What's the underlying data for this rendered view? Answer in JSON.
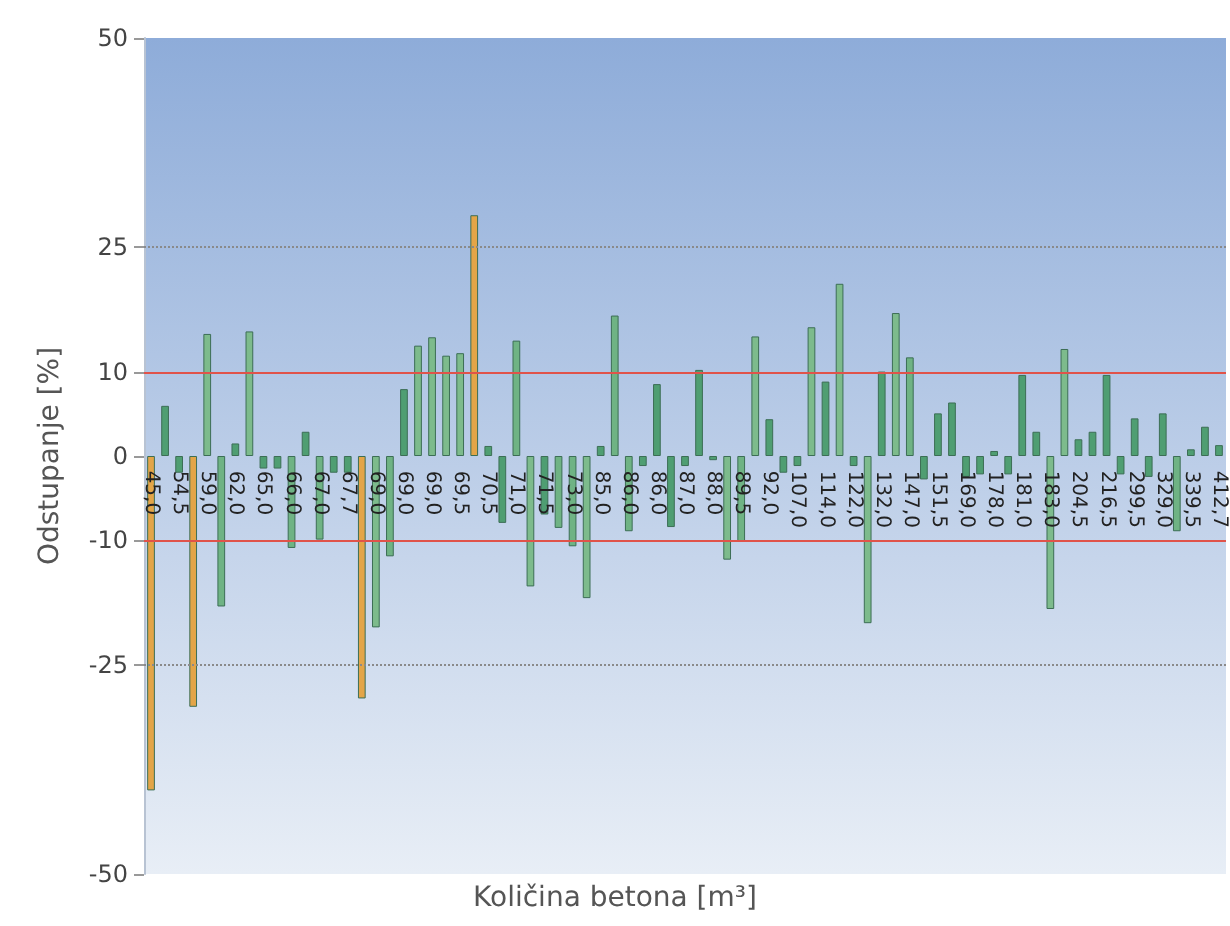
{
  "chart_data": {
    "type": "bar",
    "xlabel": "Količina betona [m³]",
    "ylabel": "Odstupanje [%]",
    "categories": [
      "45,0",
      null,
      "54,5",
      null,
      "59,0",
      null,
      "62,0",
      null,
      "65,0",
      null,
      "66,0",
      null,
      "67,0",
      null,
      "67,7",
      null,
      "69,0",
      null,
      "69,0",
      null,
      "69,0",
      null,
      "69,5",
      null,
      "70,5",
      null,
      "71,0",
      null,
      "71,5",
      null,
      "73,0",
      null,
      "85,0",
      null,
      "86,0",
      null,
      "86,0",
      null,
      "87,0",
      null,
      "88,0",
      null,
      "89,5",
      null,
      "92,0",
      null,
      "107,0",
      null,
      "114,0",
      null,
      "122,0",
      null,
      "132,0",
      null,
      "147,0",
      null,
      "151,5",
      null,
      "169,0",
      null,
      "178,0",
      null,
      "181,0",
      null,
      "183,0",
      null,
      "204,5",
      null,
      "216,5",
      null,
      "299,5",
      null,
      "329,0",
      null,
      "339,5",
      null,
      "412,7"
    ],
    "values": [
      -40,
      6,
      -2,
      -30,
      14.6,
      -18,
      1.5,
      14.9,
      -1.5,
      -1.5,
      -11,
      2.9,
      -10,
      -2,
      -2,
      -29,
      -20.5,
      -12,
      8,
      13.2,
      14.2,
      12,
      12.3,
      28.8,
      1.2,
      -8,
      13.8,
      -15.6,
      -7,
      -8.6,
      -10.8,
      -17,
      1.2,
      16.8,
      -9,
      -1.2,
      8.6,
      -8.5,
      -1.2,
      10.3,
      -0.5,
      -12.4,
      -10.2,
      14.3,
      4.4,
      -2,
      -1.2,
      15.4,
      8.9,
      20.6,
      -1.2,
      -20,
      10.1,
      17.1,
      11.8,
      -2.8,
      5.1,
      6.4,
      -2.5,
      -2.2,
      0.6,
      -2.2,
      9.7,
      2.9,
      -18.3,
      12.8,
      2,
      2.9,
      9.7,
      -2.2,
      4.5,
      -2.5,
      5.1,
      -9,
      0.8,
      3.5,
      1.3
    ],
    "colors": [
      "#e3a548",
      "#4f9e72",
      "#4f9e72",
      "#e3a548",
      "#7dbb8c",
      "#6fb384",
      "#4f9e72",
      "#7dbb8c",
      "#4f9e72",
      "#4f9e72",
      "#6fb384",
      "#4f9e72",
      "#6fb384",
      "#4f9e72",
      "#4f9e72",
      "#e3a548",
      "#7dbb8c",
      "#6fb384",
      "#4f9e72",
      "#7dbb8c",
      "#7dbb8c",
      "#7dbb8c",
      "#7dbb8c",
      "#e3a548",
      "#4f9e72",
      "#4f9e72",
      "#6fb384",
      "#7dbb8c",
      "#4f9e72",
      "#6fb384",
      "#6fb384",
      "#7dbb8c",
      "#4f9e72",
      "#6fb384",
      "#6fb384",
      "#4f9e72",
      "#4f9e72",
      "#4f9e72",
      "#4f9e72",
      "#4f9e72",
      "#4f9e72",
      "#7dbb8c",
      "#6fb384",
      "#7dbb8c",
      "#4f9e72",
      "#4f9e72",
      "#4f9e72",
      "#7dbb8c",
      "#4f9e72",
      "#7dbb8c",
      "#4f9e72",
      "#7dbb8c",
      "#4f9e72",
      "#7dbb8c",
      "#6fb384",
      "#4f9e72",
      "#4f9e72",
      "#4f9e72",
      "#4f9e72",
      "#4f9e72",
      "#4f9e72",
      "#4f9e72",
      "#4f9e72",
      "#4f9e72",
      "#7dbb8c",
      "#7dbb8c",
      "#4f9e72",
      "#4f9e72",
      "#4f9e72",
      "#4f9e72",
      "#4f9e72",
      "#4f9e72",
      "#4f9e72",
      "#6fb384",
      "#4f9e72",
      "#4f9e72",
      "#4f9e72"
    ],
    "ylim": [
      -50,
      50
    ],
    "yticks": [
      -50,
      -25,
      -10,
      0,
      10,
      25,
      50
    ],
    "grid": false,
    "ref_lines": [
      {
        "axis": "y",
        "value": 10,
        "color": "#e0534a",
        "line_style": "solid"
      },
      {
        "axis": "y",
        "value": -10,
        "color": "#e0534a",
        "line_style": "solid"
      },
      {
        "axis": "y",
        "value": 25,
        "color": "#8a8a8a",
        "line_style": "dotted"
      },
      {
        "axis": "y",
        "value": -25,
        "color": "#8a8a8a",
        "line_style": "dotted"
      }
    ]
  }
}
